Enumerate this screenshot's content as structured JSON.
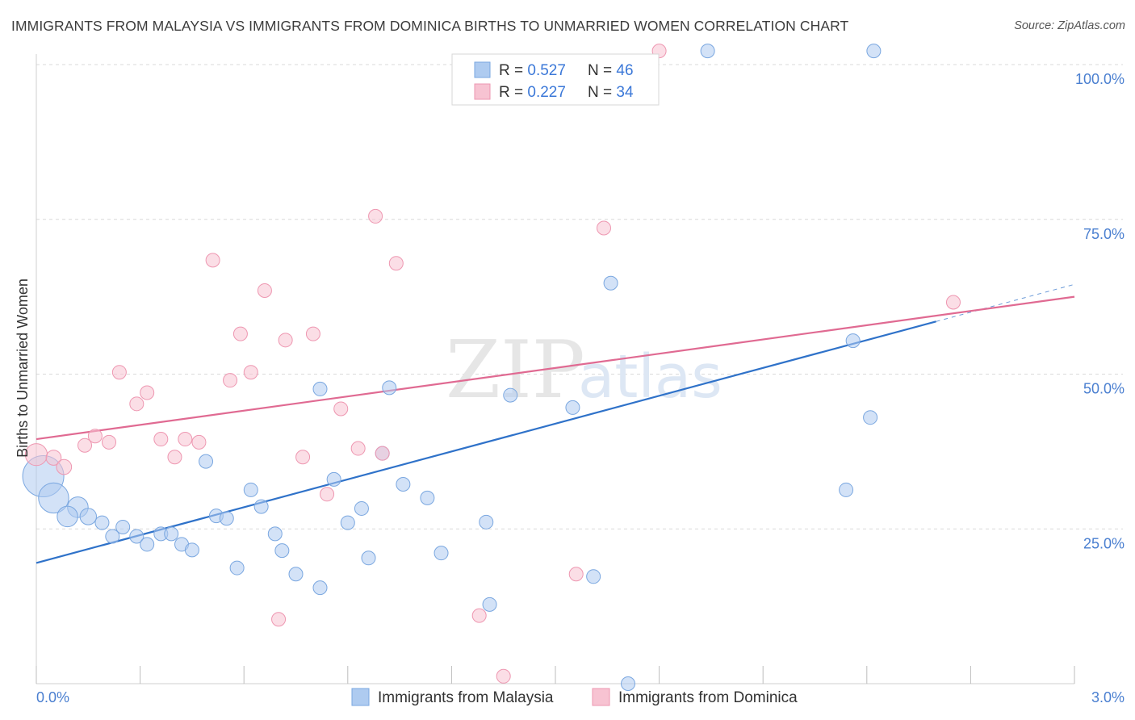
{
  "title": "IMMIGRANTS FROM MALAYSIA VS IMMIGRANTS FROM DOMINICA BIRTHS TO UNMARRIED WOMEN CORRELATION CHART",
  "source": "Source: ZipAtlas.com",
  "watermark": {
    "zip": "ZIP",
    "atlas": "atlas"
  },
  "colors": {
    "blue_fill": "#aecbf0",
    "blue_stroke": "#7aa7e0",
    "blue_line": "#2f72c9",
    "pink_fill": "#f7c3d2",
    "pink_stroke": "#ee97b1",
    "pink_line": "#e06a92",
    "tick_text": "#4a7fd0",
    "grid": "#d9d9d9"
  },
  "chart_data": {
    "type": "scatter",
    "xlabel": "",
    "ylabel": "Births to Unmarried Women",
    "xlim": [
      0.0,
      3.0
    ],
    "ylim": [
      0,
      100
    ],
    "x_tick_labels": [
      "0.0%",
      "3.0%"
    ],
    "y_tick_labels": [
      "25.0%",
      "50.0%",
      "75.0%",
      "100.0%"
    ],
    "y_ticks": [
      25,
      50,
      75,
      100
    ],
    "grid": "horizontal dashed",
    "legend": {
      "position": "top-center",
      "rows": [
        {
          "r_label": "R = ",
          "r_value": "0.527",
          "n_label": "N = ",
          "n_value": "46"
        },
        {
          "r_label": "R = ",
          "r_value": "0.227",
          "n_label": "N = ",
          "n_value": "34"
        }
      ]
    },
    "bottom_legend": [
      "Immigrants from Malaysia",
      "Immigrants from Dominica"
    ],
    "series": [
      {
        "name": "Immigrants from Malaysia",
        "color": "blue",
        "trend": {
          "x0": 0.0,
          "y0": 19.5,
          "x1": 2.6,
          "y1": 58.5,
          "dash_to_x": 3.0,
          "dash_to_y": 64.5
        },
        "points": [
          [
            0.02,
            33.5,
            3.0
          ],
          [
            0.05,
            30.0,
            2.2
          ],
          [
            0.12,
            28.5,
            1.5
          ],
          [
            0.09,
            27.0,
            1.5
          ],
          [
            0.15,
            27.0,
            1.2
          ],
          [
            0.19,
            26.0,
            1.0
          ],
          [
            0.25,
            25.3,
            1.0
          ],
          [
            0.22,
            23.8,
            1.0
          ],
          [
            0.29,
            23.8,
            1.0
          ],
          [
            0.32,
            22.5,
            1.0
          ],
          [
            0.36,
            24.2,
            1.0
          ],
          [
            0.39,
            24.2,
            1.0
          ],
          [
            0.42,
            22.5,
            1.0
          ],
          [
            0.45,
            21.6,
            1.0
          ],
          [
            0.49,
            35.9,
            1.0
          ],
          [
            0.52,
            27.1,
            1.0
          ],
          [
            0.55,
            26.7,
            1.0
          ],
          [
            0.58,
            18.7,
            1.0
          ],
          [
            0.62,
            31.3,
            1.0
          ],
          [
            0.65,
            28.6,
            1.0
          ],
          [
            0.69,
            24.2,
            1.0
          ],
          [
            0.71,
            21.5,
            1.0
          ],
          [
            0.75,
            17.7,
            1.0
          ],
          [
            0.82,
            15.5,
            1.0
          ],
          [
            0.82,
            47.6,
            1.0
          ],
          [
            0.86,
            33.0,
            1.0
          ],
          [
            0.9,
            26.0,
            1.0
          ],
          [
            0.94,
            28.3,
            1.0
          ],
          [
            0.96,
            20.3,
            1.0
          ],
          [
            1.02,
            47.8,
            1.0
          ],
          [
            1.0,
            37.2,
            1.0
          ],
          [
            1.06,
            32.2,
            1.0
          ],
          [
            1.13,
            30.0,
            1.0
          ],
          [
            1.17,
            21.1,
            1.0
          ],
          [
            1.3,
            26.1,
            1.0
          ],
          [
            1.31,
            12.8,
            1.0
          ],
          [
            1.37,
            46.6,
            1.0
          ],
          [
            1.55,
            44.6,
            1.0
          ],
          [
            1.61,
            17.3,
            1.0
          ],
          [
            1.66,
            64.7,
            1.0
          ],
          [
            1.71,
            0.0,
            1.0
          ],
          [
            1.94,
            102.2,
            1.0
          ],
          [
            2.36,
            55.4,
            1.0
          ],
          [
            2.34,
            31.3,
            1.0
          ],
          [
            2.41,
            43.0,
            1.0
          ],
          [
            2.42,
            102.2,
            1.0
          ]
        ]
      },
      {
        "name": "Immigrants from Dominica",
        "color": "pink",
        "trend": {
          "x0": 0.0,
          "y0": 39.5,
          "x1": 3.0,
          "y1": 62.5
        },
        "points": [
          [
            0.0,
            37.0,
            1.6
          ],
          [
            0.05,
            36.5,
            1.1
          ],
          [
            0.08,
            35.0,
            1.1
          ],
          [
            0.14,
            38.5,
            1.0
          ],
          [
            0.17,
            40.0,
            1.0
          ],
          [
            0.21,
            39.0,
            1.0
          ],
          [
            0.24,
            50.3,
            1.0
          ],
          [
            0.29,
            45.2,
            1.0
          ],
          [
            0.32,
            47.0,
            1.0
          ],
          [
            0.36,
            39.5,
            1.0
          ],
          [
            0.4,
            36.6,
            1.0
          ],
          [
            0.43,
            39.5,
            1.0
          ],
          [
            0.47,
            39.0,
            1.0
          ],
          [
            0.51,
            68.4,
            1.0
          ],
          [
            0.56,
            49.0,
            1.0
          ],
          [
            0.59,
            56.5,
            1.0
          ],
          [
            0.62,
            50.3,
            1.0
          ],
          [
            0.66,
            63.5,
            1.0
          ],
          [
            0.7,
            10.4,
            1.0
          ],
          [
            0.72,
            55.5,
            1.0
          ],
          [
            0.77,
            36.6,
            1.0
          ],
          [
            0.8,
            56.5,
            1.0
          ],
          [
            0.84,
            30.6,
            1.0
          ],
          [
            0.88,
            44.4,
            1.0
          ],
          [
            0.93,
            38.0,
            1.0
          ],
          [
            0.98,
            75.5,
            1.0
          ],
          [
            1.0,
            37.2,
            1.0
          ],
          [
            1.04,
            67.9,
            1.0
          ],
          [
            1.28,
            11.0,
            1.0
          ],
          [
            1.35,
            1.2,
            1.0
          ],
          [
            1.56,
            17.7,
            1.0
          ],
          [
            1.64,
            73.6,
            1.0
          ],
          [
            1.8,
            102.2,
            1.0
          ],
          [
            2.65,
            61.6,
            1.0
          ]
        ]
      }
    ]
  }
}
